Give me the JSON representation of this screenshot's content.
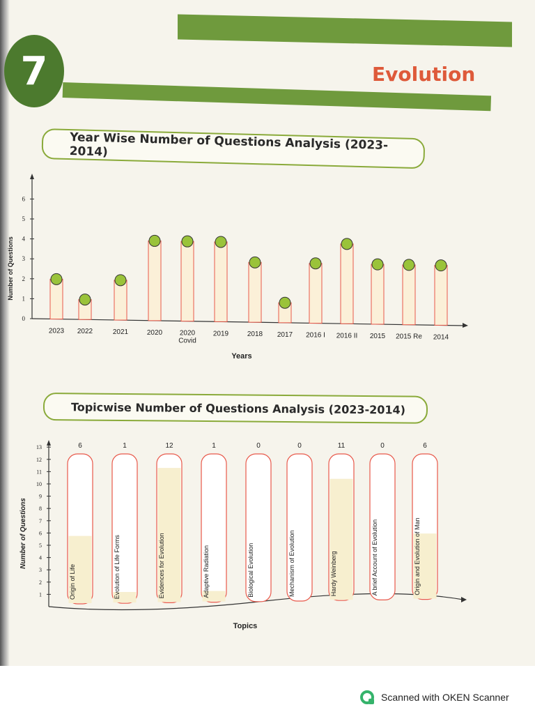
{
  "chapter": {
    "number": "7",
    "title": "Evolution"
  },
  "section1": {
    "title": "Year Wise Number of Questions Analysis (2023-2014)"
  },
  "section2": {
    "title": "Topicwise Number of Questions Analysis (2023-2014)"
  },
  "scanner": {
    "text": "Scanned with OKEN Scanner"
  },
  "colors": {
    "accent_green": "#6f9a3d",
    "title_red": "#de5a3a",
    "bar_outline": "#e8584a",
    "marker_green": "#9ac33a"
  },
  "chart_data": [
    {
      "type": "bar",
      "xlabel": "Years",
      "ylabel": "Number of Questions",
      "ylim": [
        0,
        6
      ],
      "yticks": [
        "0",
        "1",
        "2",
        "3",
        "4",
        "5",
        "6"
      ],
      "categories": [
        "2023",
        "2022",
        "2021",
        "2020",
        "2020 Covid",
        "2019",
        "2018",
        "2017",
        "2016 I",
        "2016 II",
        "2015",
        "2015 Re",
        "2014"
      ],
      "values": [
        2,
        1,
        2,
        4,
        4,
        4,
        3,
        1,
        3,
        4,
        3,
        3,
        3
      ]
    },
    {
      "type": "bar",
      "xlabel": "Topics",
      "ylabel": "Number of Questions",
      "ylim": [
        0,
        13
      ],
      "yticks": [
        "1",
        "2",
        "3",
        "4",
        "5",
        "6",
        "7",
        "8",
        "9",
        "10",
        "11",
        "12",
        "13"
      ],
      "categories": [
        "Origin of Life",
        "Evolution of Life Forms",
        "Evidences for Evolution",
        "Adaptive Radiation",
        "Biological Evolution",
        "Mechanism of Evolution",
        "Hardy Weinberg",
        "A brief Account of Evolution",
        "Origin and Evolution of Man"
      ],
      "values": [
        6,
        1,
        12,
        1,
        0,
        0,
        11,
        0,
        6
      ],
      "data_labels": [
        "6",
        "1",
        "12",
        "1",
        "0",
        "0",
        "11",
        "0",
        "6"
      ]
    }
  ]
}
